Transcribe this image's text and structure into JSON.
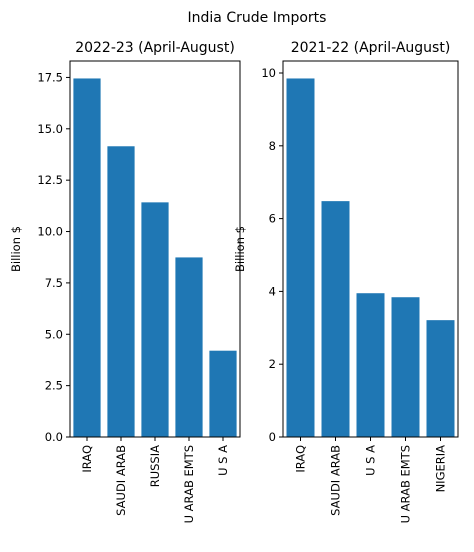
{
  "figure": {
    "suptitle": "India Crude Imports"
  },
  "chart_data": [
    {
      "type": "bar",
      "title": "2022-23 (April-August)",
      "xlabel": "",
      "ylabel": "Billion $",
      "categories": [
        "IRAQ",
        "SAUDI ARAB",
        "RUSSIA",
        "U ARAB EMTS",
        "U S A"
      ],
      "values": [
        17.45,
        14.15,
        11.42,
        8.74,
        4.2
      ],
      "ylim": [
        0,
        18.3
      ],
      "yticks": [
        0.0,
        2.5,
        5.0,
        7.5,
        10.0,
        12.5,
        15.0,
        17.5
      ],
      "ytick_labels": [
        "0.0",
        "2.5",
        "5.0",
        "7.5",
        "10.0",
        "12.5",
        "15.0",
        "17.5"
      ],
      "color": "#1f77b4",
      "grid": false
    },
    {
      "type": "bar",
      "title": "2021-22 (April-August)",
      "xlabel": "",
      "ylabel": "Billion $",
      "categories": [
        "IRAQ",
        "SAUDI ARAB",
        "U S A",
        "U ARAB EMTS",
        "NIGERIA"
      ],
      "values": [
        9.85,
        6.48,
        3.95,
        3.84,
        3.21
      ],
      "ylim": [
        0,
        10.33
      ],
      "yticks": [
        0,
        2,
        4,
        6,
        8,
        10
      ],
      "ytick_labels": [
        "0",
        "2",
        "4",
        "6",
        "8",
        "10"
      ],
      "color": "#1f77b4",
      "grid": false
    }
  ]
}
